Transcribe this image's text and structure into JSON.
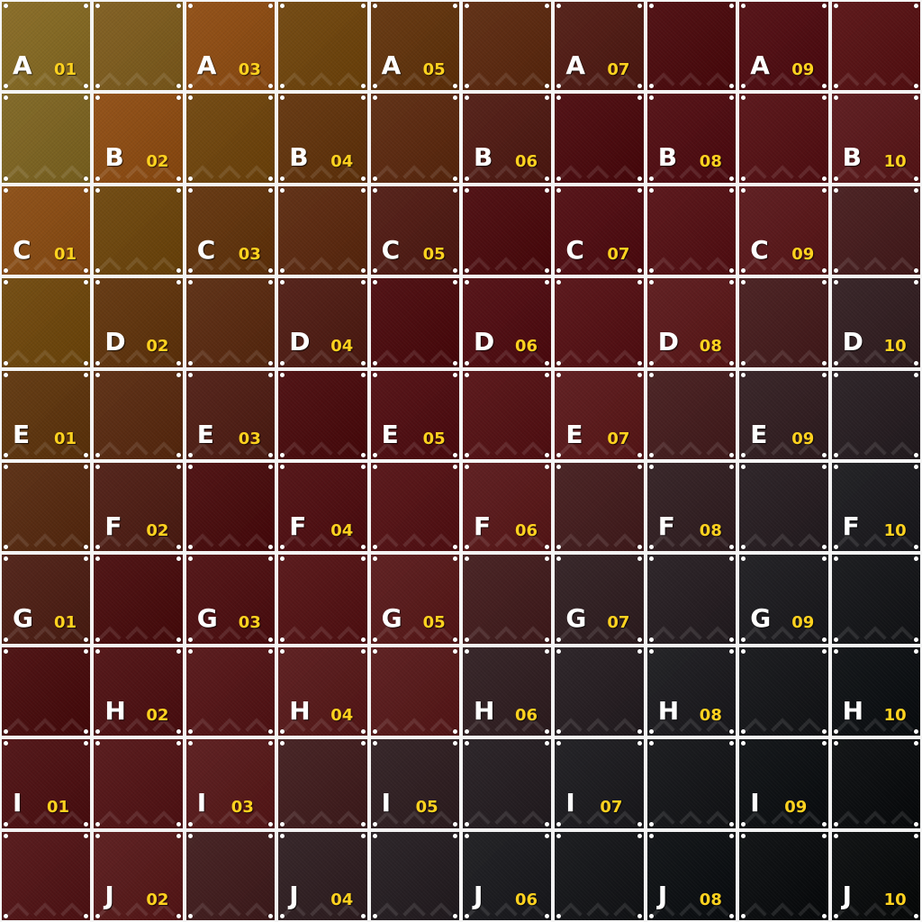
{
  "grid": {
    "rows": [
      "A",
      "B",
      "C",
      "D",
      "E",
      "F",
      "G",
      "H",
      "I",
      "J"
    ],
    "columns": [
      "01",
      "02",
      "03",
      "04",
      "05",
      "06",
      "07",
      "08",
      "09",
      "10"
    ],
    "tiles": [
      {
        "row": "A",
        "col": "01",
        "color": "#85681f",
        "labeled": true
      },
      {
        "row": "A",
        "col": "02",
        "color": "#7d5a1a",
        "labeled": false
      },
      {
        "row": "A",
        "col": "03",
        "color": "#8e4a0e",
        "labeled": true
      },
      {
        "row": "A",
        "col": "04",
        "color": "#6e4208",
        "labeled": false
      },
      {
        "row": "A",
        "col": "05",
        "color": "#603007",
        "labeled": true
      },
      {
        "row": "A",
        "col": "06",
        "color": "#5a260b",
        "labeled": false
      },
      {
        "row": "A",
        "col": "07",
        "color": "#4e170f",
        "labeled": true
      },
      {
        "row": "A",
        "col": "08",
        "color": "#490509",
        "labeled": false
      },
      {
        "row": "A",
        "col": "09",
        "color": "#4e080d",
        "labeled": true
      },
      {
        "row": "A",
        "col": "10",
        "color": "#550d0f",
        "labeled": false
      },
      {
        "row": "B",
        "col": "01",
        "color": "#7d631e",
        "labeled": false
      },
      {
        "row": "B",
        "col": "02",
        "color": "#8e4a0e",
        "labeled": true
      },
      {
        "row": "B",
        "col": "03",
        "color": "#6e4208",
        "labeled": false
      },
      {
        "row": "B",
        "col": "04",
        "color": "#603007",
        "labeled": true
      },
      {
        "row": "B",
        "col": "05",
        "color": "#5a260b",
        "labeled": false
      },
      {
        "row": "B",
        "col": "06",
        "color": "#4e170f",
        "labeled": true
      },
      {
        "row": "B",
        "col": "07",
        "color": "#490509",
        "labeled": false
      },
      {
        "row": "B",
        "col": "08",
        "color": "#4e080d",
        "labeled": true
      },
      {
        "row": "B",
        "col": "09",
        "color": "#530c10",
        "labeled": false
      },
      {
        "row": "B",
        "col": "10",
        "color": "#581316",
        "labeled": true
      },
      {
        "row": "C",
        "col": "01",
        "color": "#8a4a0f",
        "labeled": true
      },
      {
        "row": "C",
        "col": "02",
        "color": "#6c4308",
        "labeled": false
      },
      {
        "row": "C",
        "col": "03",
        "color": "#603007",
        "labeled": true
      },
      {
        "row": "C",
        "col": "04",
        "color": "#5a260b",
        "labeled": false
      },
      {
        "row": "C",
        "col": "05",
        "color": "#4e170f",
        "labeled": true
      },
      {
        "row": "C",
        "col": "06",
        "color": "#490509",
        "labeled": false
      },
      {
        "row": "C",
        "col": "07",
        "color": "#4e080d",
        "labeled": true
      },
      {
        "row": "C",
        "col": "08",
        "color": "#530c10",
        "labeled": false
      },
      {
        "row": "C",
        "col": "09",
        "color": "#581316",
        "labeled": true
      },
      {
        "row": "C",
        "col": "10",
        "color": "#431819",
        "labeled": false
      },
      {
        "row": "D",
        "col": "01",
        "color": "#6e4508",
        "labeled": false
      },
      {
        "row": "D",
        "col": "02",
        "color": "#5f3108",
        "labeled": true
      },
      {
        "row": "D",
        "col": "03",
        "color": "#58270c",
        "labeled": false
      },
      {
        "row": "D",
        "col": "04",
        "color": "#4d180f",
        "labeled": true
      },
      {
        "row": "D",
        "col": "05",
        "color": "#490509",
        "labeled": false
      },
      {
        "row": "D",
        "col": "06",
        "color": "#4e080d",
        "labeled": true
      },
      {
        "row": "D",
        "col": "07",
        "color": "#530c10",
        "labeled": false
      },
      {
        "row": "D",
        "col": "08",
        "color": "#591416",
        "labeled": true
      },
      {
        "row": "D",
        "col": "09",
        "color": "#431819",
        "labeled": false
      },
      {
        "row": "D",
        "col": "10",
        "color": "#2f1b1e",
        "labeled": true
      },
      {
        "row": "E",
        "col": "01",
        "color": "#5d3209",
        "labeled": true
      },
      {
        "row": "E",
        "col": "02",
        "color": "#57270c",
        "labeled": false
      },
      {
        "row": "E",
        "col": "03",
        "color": "#4d1a10",
        "labeled": true
      },
      {
        "row": "E",
        "col": "04",
        "color": "#480609",
        "labeled": false
      },
      {
        "row": "E",
        "col": "05",
        "color": "#4e090d",
        "labeled": true
      },
      {
        "row": "E",
        "col": "06",
        "color": "#530d10",
        "labeled": false
      },
      {
        "row": "E",
        "col": "07",
        "color": "#591416",
        "labeled": true
      },
      {
        "row": "E",
        "col": "08",
        "color": "#42191a",
        "labeled": false
      },
      {
        "row": "E",
        "col": "09",
        "color": "#2f1b1e",
        "labeled": true
      },
      {
        "row": "E",
        "col": "10",
        "color": "#231a1e",
        "labeled": false
      },
      {
        "row": "F",
        "col": "01",
        "color": "#55270c",
        "labeled": false
      },
      {
        "row": "F",
        "col": "02",
        "color": "#4c1a10",
        "labeled": true
      },
      {
        "row": "F",
        "col": "03",
        "color": "#470709",
        "labeled": false
      },
      {
        "row": "F",
        "col": "04",
        "color": "#4d0a0d",
        "labeled": true
      },
      {
        "row": "F",
        "col": "05",
        "color": "#520d10",
        "labeled": false
      },
      {
        "row": "F",
        "col": "06",
        "color": "#581416",
        "labeled": true
      },
      {
        "row": "F",
        "col": "07",
        "color": "#41191a",
        "labeled": false
      },
      {
        "row": "F",
        "col": "08",
        "color": "#2e1b1e",
        "labeled": true
      },
      {
        "row": "F",
        "col": "09",
        "color": "#231a1e",
        "labeled": false
      },
      {
        "row": "F",
        "col": "10",
        "color": "#18171b",
        "labeled": true
      },
      {
        "row": "G",
        "col": "01",
        "color": "#4b1b10",
        "labeled": true
      },
      {
        "row": "G",
        "col": "02",
        "color": "#470809",
        "labeled": false
      },
      {
        "row": "G",
        "col": "03",
        "color": "#4c0b0d",
        "labeled": true
      },
      {
        "row": "G",
        "col": "04",
        "color": "#520e10",
        "labeled": false
      },
      {
        "row": "G",
        "col": "05",
        "color": "#571516",
        "labeled": true
      },
      {
        "row": "G",
        "col": "06",
        "color": "#40191a",
        "labeled": false
      },
      {
        "row": "G",
        "col": "07",
        "color": "#2d1b1e",
        "labeled": true
      },
      {
        "row": "G",
        "col": "08",
        "color": "#221a1e",
        "labeled": false
      },
      {
        "row": "G",
        "col": "09",
        "color": "#18171b",
        "labeled": true
      },
      {
        "row": "G",
        "col": "10",
        "color": "#101114",
        "labeled": false
      },
      {
        "row": "H",
        "col": "01",
        "color": "#460809",
        "labeled": false
      },
      {
        "row": "H",
        "col": "02",
        "color": "#4c0c0e",
        "labeled": true
      },
      {
        "row": "H",
        "col": "03",
        "color": "#521012",
        "labeled": false
      },
      {
        "row": "H",
        "col": "04",
        "color": "#561516",
        "labeled": true
      },
      {
        "row": "H",
        "col": "05",
        "color": "#561516",
        "labeled": false
      },
      {
        "row": "H",
        "col": "06",
        "color": "#2d1b1e",
        "labeled": true
      },
      {
        "row": "H",
        "col": "07",
        "color": "#221a1e",
        "labeled": false
      },
      {
        "row": "H",
        "col": "08",
        "color": "#18171b",
        "labeled": true
      },
      {
        "row": "H",
        "col": "09",
        "color": "#101114",
        "labeled": false
      },
      {
        "row": "H",
        "col": "10",
        "color": "#080b0e",
        "labeled": true
      },
      {
        "row": "I",
        "col": "01",
        "color": "#4b0c0e",
        "labeled": true
      },
      {
        "row": "I",
        "col": "02",
        "color": "#511012",
        "labeled": false
      },
      {
        "row": "I",
        "col": "03",
        "color": "#561516",
        "labeled": true
      },
      {
        "row": "I",
        "col": "04",
        "color": "#3e191a",
        "labeled": false
      },
      {
        "row": "I",
        "col": "05",
        "color": "#2c1b1e",
        "labeled": true
      },
      {
        "row": "I",
        "col": "06",
        "color": "#211a1e",
        "labeled": false
      },
      {
        "row": "I",
        "col": "07",
        "color": "#18171b",
        "labeled": true
      },
      {
        "row": "I",
        "col": "08",
        "color": "#101114",
        "labeled": false
      },
      {
        "row": "I",
        "col": "09",
        "color": "#080b0e",
        "labeled": true
      },
      {
        "row": "I",
        "col": "10",
        "color": "#05080a",
        "labeled": false
      },
      {
        "row": "J",
        "col": "01",
        "color": "#501012",
        "labeled": false
      },
      {
        "row": "J",
        "col": "02",
        "color": "#561516",
        "labeled": true
      },
      {
        "row": "J",
        "col": "03",
        "color": "#3e191a",
        "labeled": false
      },
      {
        "row": "J",
        "col": "04",
        "color": "#2c1b1e",
        "labeled": true
      },
      {
        "row": "J",
        "col": "05",
        "color": "#211a1e",
        "labeled": false
      },
      {
        "row": "J",
        "col": "06",
        "color": "#17171b",
        "labeled": true
      },
      {
        "row": "J",
        "col": "07",
        "color": "#101114",
        "labeled": false
      },
      {
        "row": "J",
        "col": "08",
        "color": "#080b0e",
        "labeled": true
      },
      {
        "row": "J",
        "col": "09",
        "color": "#05080a",
        "labeled": false
      },
      {
        "row": "J",
        "col": "10",
        "color": "#040607",
        "labeled": true
      }
    ]
  },
  "colors": {
    "gridline": "#f4f4f4",
    "row_letter": "#ffffff",
    "col_number": "#ffd21f",
    "rivet": "#ffffff"
  },
  "icons": {
    "rivet": "rivet-icon",
    "arrow": "chevron-up-icon"
  }
}
